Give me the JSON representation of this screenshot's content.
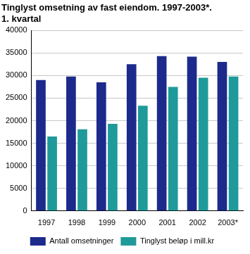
{
  "chart_data": {
    "type": "bar",
    "title": "Tinglyst omsetning av fast eiendom. 1997-2003*.",
    "subtitle": "1. kvartal",
    "categories": [
      "1997",
      "1998",
      "1999",
      "2000",
      "2001",
      "2002",
      "2003*"
    ],
    "series": [
      {
        "name": "Antall omsetninger",
        "color": "#1c2a8c",
        "values": [
          29000,
          29800,
          28500,
          32500,
          34300,
          34200,
          33000
        ]
      },
      {
        "name": "Tinglyst beløp i mill.kr",
        "color": "#1f9a9a",
        "values": [
          16500,
          18100,
          19300,
          23300,
          27500,
          29500,
          29800
        ]
      }
    ],
    "ylim": [
      0,
      40000
    ],
    "yticks": [
      0,
      5000,
      10000,
      15000,
      20000,
      25000,
      30000,
      35000,
      40000
    ],
    "grid": true,
    "legend": "bottom"
  }
}
